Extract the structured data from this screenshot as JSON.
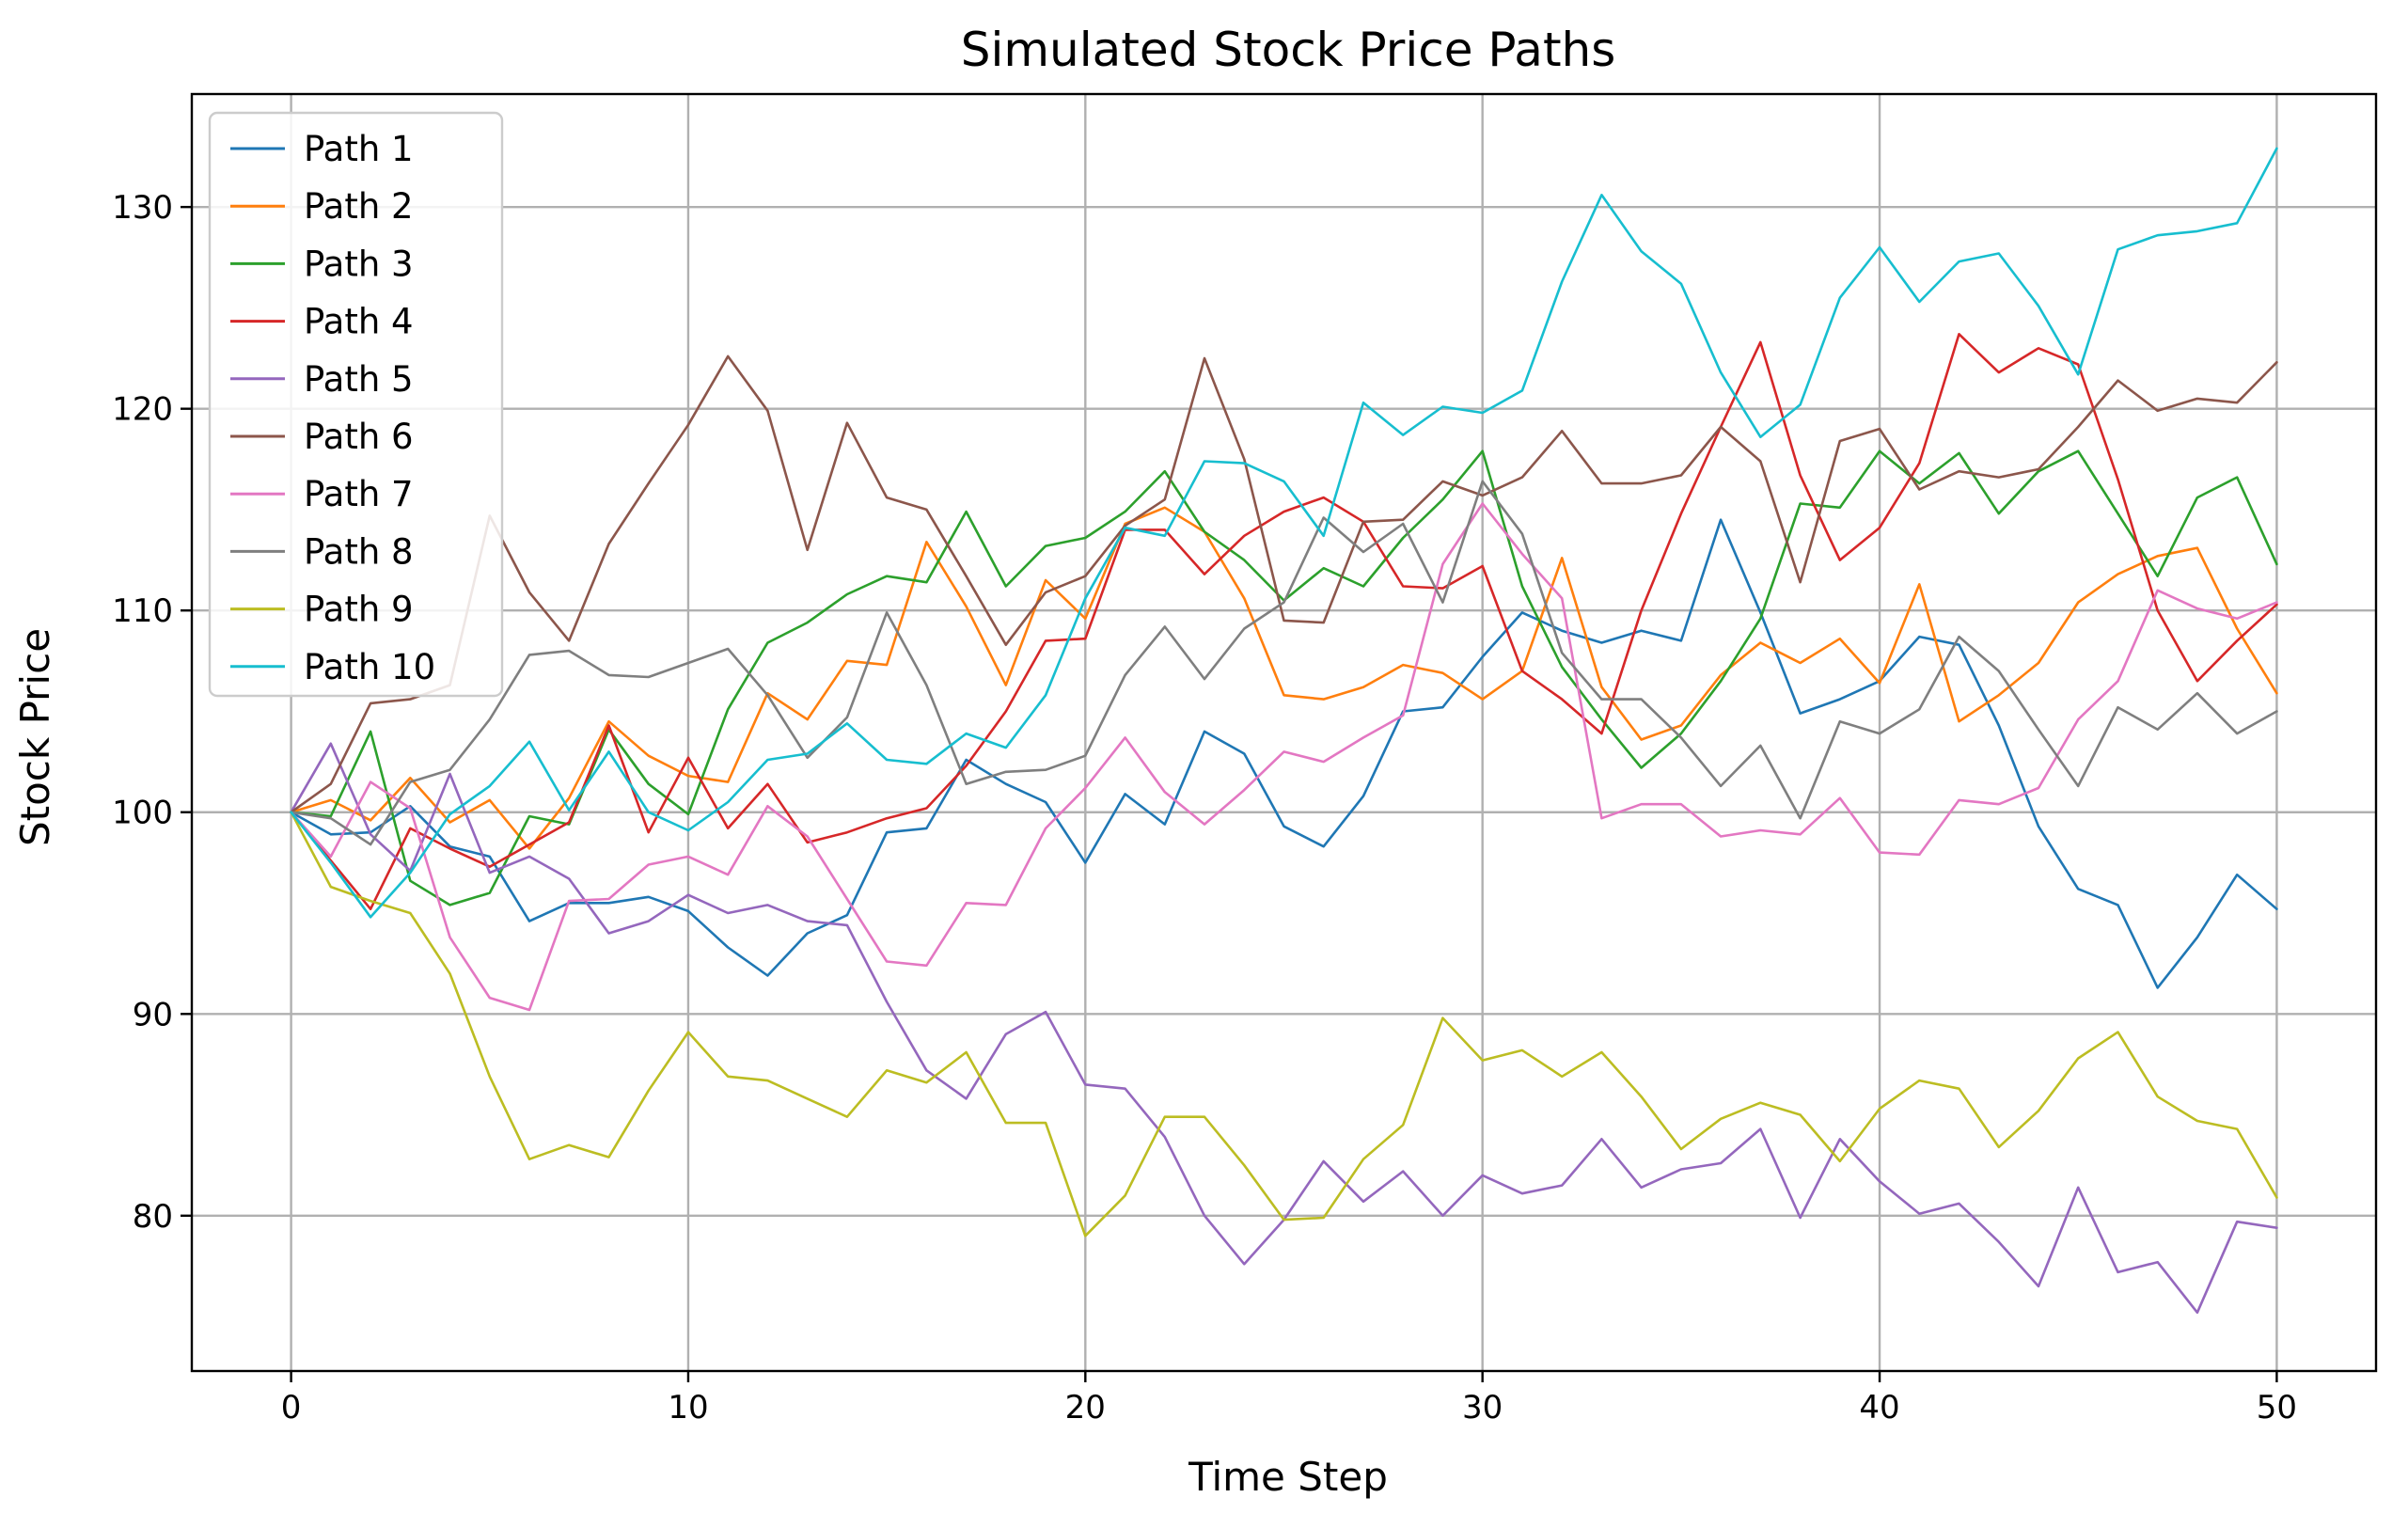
{
  "chart_data": {
    "type": "line",
    "title": "Simulated Stock Price Paths",
    "xlabel": "Time Step",
    "ylabel": "Stock Price",
    "xlim": [
      -2.5,
      52.5
    ],
    "ylim": [
      72.3,
      135.6
    ],
    "xticks": [
      0,
      10,
      20,
      30,
      40,
      50
    ],
    "yticks": [
      80,
      90,
      100,
      110,
      120,
      130
    ],
    "grid": true,
    "legend_position": "top-left",
    "x": [
      0,
      1,
      2,
      3,
      4,
      5,
      6,
      7,
      8,
      9,
      10,
      11,
      12,
      13,
      14,
      15,
      16,
      17,
      18,
      19,
      20,
      21,
      22,
      23,
      24,
      25,
      26,
      27,
      28,
      29,
      30,
      31,
      32,
      33,
      34,
      35,
      36,
      37,
      38,
      39,
      40,
      41,
      42,
      43,
      44,
      45,
      46,
      47,
      48,
      49,
      50
    ],
    "series": [
      {
        "name": "Path 1",
        "color": "#1f77b4",
        "values": [
          100,
          98.9,
          99.0,
          100.3,
          98.3,
          97.8,
          94.6,
          95.5,
          95.5,
          95.8,
          95.1,
          93.3,
          91.9,
          94.0,
          94.9,
          99.0,
          99.2,
          102.6,
          101.4,
          100.5,
          97.5,
          100.9,
          99.4,
          104.0,
          102.9,
          99.3,
          98.3,
          100.8,
          105.0,
          105.2,
          107.7,
          109.9,
          109.0,
          108.4,
          109.0,
          108.5,
          114.5,
          109.9,
          104.9,
          105.6,
          106.5,
          108.7,
          108.3,
          104.3,
          99.3,
          96.2,
          95.4,
          91.3,
          93.8,
          96.9,
          95.2
        ]
      },
      {
        "name": "Path 2",
        "color": "#ff7f0e",
        "values": [
          100,
          100.6,
          99.6,
          101.7,
          99.5,
          100.6,
          98.2,
          100.7,
          104.5,
          102.8,
          101.8,
          101.5,
          105.9,
          104.6,
          107.5,
          107.3,
          113.4,
          110.2,
          106.3,
          111.5,
          109.6,
          114.3,
          115.1,
          113.9,
          110.6,
          105.8,
          105.6,
          106.2,
          107.3,
          106.9,
          105.6,
          107.0,
          112.6,
          106.2,
          103.6,
          104.3,
          106.8,
          108.4,
          107.4,
          108.6,
          106.4,
          111.3,
          104.5,
          105.8,
          107.4,
          110.4,
          111.8,
          112.7,
          113.1,
          109.1,
          105.9
        ]
      },
      {
        "name": "Path 3",
        "color": "#2ca02c",
        "values": [
          100,
          99.8,
          104.0,
          96.6,
          95.4,
          96.0,
          99.8,
          99.4,
          104.1,
          101.4,
          99.9,
          105.1,
          108.4,
          109.4,
          110.8,
          111.7,
          111.4,
          114.9,
          111.2,
          113.2,
          113.6,
          114.9,
          116.9,
          113.9,
          112.5,
          110.5,
          112.1,
          111.2,
          113.6,
          115.5,
          117.9,
          111.2,
          107.2,
          104.6,
          102.2,
          103.9,
          106.5,
          109.6,
          115.3,
          115.1,
          117.9,
          116.3,
          117.8,
          114.8,
          116.9,
          117.9,
          114.8,
          111.7,
          115.6,
          116.6,
          112.3
        ]
      },
      {
        "name": "Path 4",
        "color": "#d62728",
        "values": [
          100,
          97.6,
          95.2,
          99.2,
          98.2,
          97.3,
          98.4,
          99.5,
          104.3,
          99.0,
          102.7,
          99.2,
          101.4,
          98.5,
          99.0,
          99.7,
          100.2,
          102.3,
          105.0,
          108.5,
          108.6,
          114.0,
          114.0,
          111.8,
          113.7,
          114.9,
          115.6,
          114.4,
          111.2,
          111.1,
          112.2,
          107.0,
          105.6,
          103.9,
          110.0,
          114.8,
          119.1,
          123.3,
          116.7,
          112.5,
          114.1,
          117.3,
          123.7,
          121.8,
          123.0,
          122.2,
          116.5,
          110.0,
          106.5,
          108.5,
          110.3
        ]
      },
      {
        "name": "Path 5",
        "color": "#9467bd",
        "values": [
          100,
          103.4,
          98.9,
          97.1,
          101.9,
          97.0,
          97.8,
          96.7,
          94.0,
          94.6,
          95.9,
          95.0,
          95.4,
          94.6,
          94.4,
          90.6,
          87.2,
          85.8,
          89.0,
          90.1,
          86.5,
          86.3,
          83.9,
          80.0,
          77.6,
          79.8,
          82.7,
          80.7,
          82.2,
          80.0,
          82.0,
          81.1,
          81.5,
          83.8,
          81.4,
          82.3,
          82.6,
          84.3,
          79.9,
          83.8,
          81.7,
          80.1,
          80.6,
          78.7,
          76.5,
          81.4,
          77.2,
          77.7,
          75.2,
          79.7,
          79.4
        ]
      },
      {
        "name": "Path 6",
        "color": "#8c564b",
        "values": [
          100,
          101.4,
          105.4,
          105.6,
          106.3,
          114.7,
          110.9,
          108.5,
          113.3,
          116.3,
          119.2,
          122.6,
          119.9,
          113.0,
          119.3,
          115.6,
          115.0,
          111.7,
          108.3,
          110.9,
          111.7,
          114.2,
          115.5,
          122.5,
          117.5,
          109.5,
          109.4,
          114.4,
          114.5,
          116.4,
          115.7,
          116.6,
          118.9,
          116.3,
          116.3,
          116.7,
          119.1,
          117.4,
          111.4,
          118.4,
          119.0,
          116.0,
          116.9,
          116.6,
          117.0,
          119.1,
          121.4,
          119.9,
          120.5,
          120.3,
          122.3
        ]
      },
      {
        "name": "Path 7",
        "color": "#e377c2",
        "values": [
          100,
          97.8,
          101.5,
          100.2,
          93.8,
          90.8,
          90.2,
          95.6,
          95.7,
          97.4,
          97.8,
          96.9,
          100.3,
          98.8,
          95.7,
          92.6,
          92.4,
          95.5,
          95.4,
          99.2,
          101.2,
          103.7,
          101.0,
          99.4,
          101.1,
          103.0,
          102.5,
          103.7,
          104.8,
          112.3,
          115.3,
          112.8,
          110.6,
          99.7,
          100.4,
          100.4,
          98.8,
          99.1,
          98.9,
          100.7,
          98.0,
          97.9,
          100.6,
          100.4,
          101.2,
          104.6,
          106.5,
          111.0,
          110.1,
          109.6,
          110.4
        ]
      },
      {
        "name": "Path 8",
        "color": "#7f7f7f",
        "values": [
          100,
          99.7,
          98.4,
          101.5,
          102.1,
          104.6,
          107.8,
          108.0,
          106.8,
          106.7,
          107.4,
          108.1,
          105.8,
          102.7,
          104.7,
          109.9,
          106.3,
          101.4,
          102.0,
          102.1,
          102.8,
          106.8,
          109.2,
          106.6,
          109.1,
          110.4,
          114.6,
          112.9,
          114.3,
          110.4,
          116.4,
          113.8,
          107.9,
          105.6,
          105.6,
          103.7,
          101.3,
          103.3,
          99.7,
          104.5,
          103.9,
          105.1,
          108.7,
          107.0,
          104.1,
          101.3,
          105.2,
          104.1,
          105.9,
          103.9,
          105.0
        ]
      },
      {
        "name": "Path 9",
        "color": "#bcbd22",
        "values": [
          100,
          96.3,
          95.6,
          95.0,
          92.0,
          86.9,
          82.8,
          83.5,
          82.9,
          86.2,
          89.1,
          86.9,
          86.7,
          85.8,
          84.9,
          87.2,
          86.6,
          88.1,
          84.6,
          84.6,
          79.0,
          81.0,
          84.9,
          84.9,
          82.5,
          79.8,
          79.9,
          82.8,
          84.5,
          89.8,
          87.7,
          88.2,
          86.9,
          88.1,
          85.9,
          83.3,
          84.8,
          85.6,
          85.0,
          82.7,
          85.3,
          86.7,
          86.3,
          83.4,
          85.2,
          87.8,
          89.1,
          85.9,
          84.7,
          84.3,
          80.9
        ]
      },
      {
        "name": "Path 10",
        "color": "#17becf",
        "values": [
          100,
          97.5,
          94.8,
          97.0,
          99.9,
          101.3,
          103.5,
          100.1,
          103.0,
          100.0,
          99.1,
          100.5,
          102.6,
          102.9,
          104.4,
          102.6,
          102.4,
          103.9,
          103.2,
          105.8,
          110.6,
          114.1,
          113.7,
          117.4,
          117.3,
          116.4,
          113.7,
          120.3,
          118.7,
          120.1,
          119.8,
          120.9,
          126.3,
          130.6,
          127.8,
          126.2,
          121.8,
          118.6,
          120.2,
          125.5,
          128.0,
          125.3,
          127.3,
          127.7,
          125.1,
          121.7,
          127.9,
          128.6,
          128.8,
          129.2,
          132.9
        ]
      }
    ]
  }
}
